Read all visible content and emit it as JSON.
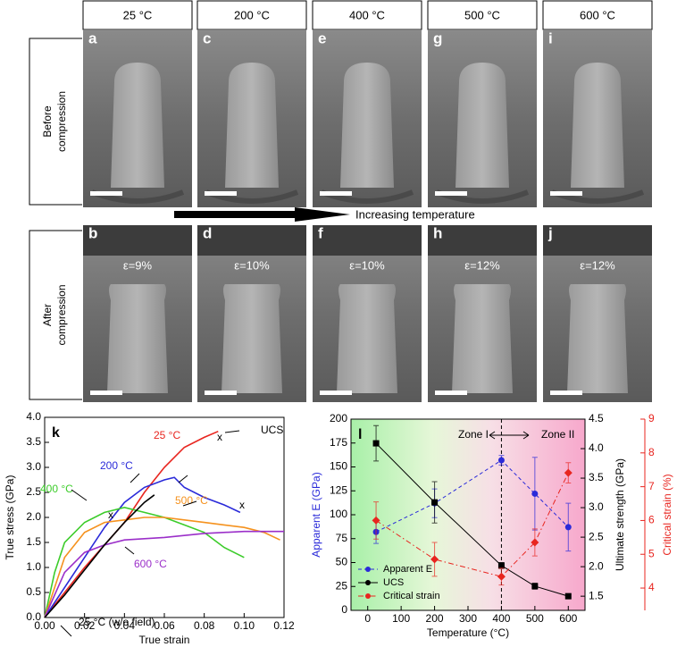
{
  "figure": {
    "temperatures": [
      "25 °C",
      "200 °C",
      "400 °C",
      "500 °C",
      "600 °C"
    ],
    "before_letters": [
      "a",
      "c",
      "e",
      "g",
      "i"
    ],
    "after_letters": [
      "b",
      "d",
      "f",
      "h",
      "j"
    ],
    "strains": [
      "ε=9%",
      "ε=10%",
      "ε=10%",
      "ε=12%",
      "ε=12%"
    ],
    "row_labels": [
      [
        "Before",
        "compression"
      ],
      [
        "After",
        "compression"
      ]
    ],
    "arrow_label": "Increasing temperature"
  },
  "chart_data": [
    {
      "type": "line",
      "panel": "k",
      "xlabel": "True strain",
      "ylabel": "True stress (GPa)",
      "xlim": [
        0,
        0.12
      ],
      "ylim": [
        0,
        4
      ],
      "xticks": [
        {
          "value": 0,
          "label": "0.00"
        },
        0.02,
        0.04,
        0.06,
        0.08,
        {
          "value": 0.1,
          "label": "0.10"
        },
        0.12
      ],
      "yticks": [
        {
          "value": 0,
          "label": "0.0"
        },
        0.5,
        {
          "value": 1,
          "label": "1.0"
        },
        1.5,
        {
          "value": 2,
          "label": "2.0"
        },
        2.5,
        {
          "value": 3,
          "label": "3.0"
        },
        3.5,
        {
          "value": 4,
          "label": "4.0"
        }
      ],
      "series": [
        {
          "name": "25 °C",
          "color": "#e8251f",
          "x": [
            0,
            0.01,
            0.02,
            0.03,
            0.04,
            0.05,
            0.06,
            0.065,
            0.07,
            0.08,
            0.087
          ],
          "values": [
            0,
            0.5,
            1.0,
            1.45,
            1.9,
            2.5,
            3.0,
            3.2,
            3.4,
            3.6,
            3.72
          ]
        },
        {
          "name": "200 °C",
          "color": "#2a2ad9",
          "x": [
            0,
            0.01,
            0.02,
            0.03,
            0.04,
            0.05,
            0.06,
            0.065,
            0.07,
            0.08,
            0.09,
            0.098
          ],
          "values": [
            0,
            0.6,
            1.2,
            1.8,
            2.3,
            2.6,
            2.75,
            2.8,
            2.6,
            2.4,
            2.25,
            2.1
          ]
        },
        {
          "name": "400 °C",
          "color": "#3ccc2a",
          "x": [
            0,
            0.005,
            0.01,
            0.02,
            0.03,
            0.04,
            0.05,
            0.06,
            0.07,
            0.08,
            0.09,
            0.1
          ],
          "values": [
            0,
            0.9,
            1.5,
            1.9,
            2.1,
            2.2,
            2.1,
            2.0,
            1.85,
            1.7,
            1.4,
            1.2
          ]
        },
        {
          "name": "500 °C",
          "color": "#f5921e",
          "x": [
            0,
            0.01,
            0.02,
            0.03,
            0.04,
            0.05,
            0.06,
            0.07,
            0.08,
            0.09,
            0.1,
            0.11,
            0.118
          ],
          "values": [
            0,
            1.2,
            1.7,
            1.9,
            1.95,
            2.0,
            2.0,
            1.95,
            1.9,
            1.85,
            1.8,
            1.7,
            1.55
          ]
        },
        {
          "name": "600 °C",
          "color": "#9b2fc9",
          "x": [
            0,
            0.01,
            0.02,
            0.03,
            0.04,
            0.06,
            0.08,
            0.1,
            0.12
          ],
          "values": [
            0,
            0.9,
            1.3,
            1.45,
            1.55,
            1.6,
            1.68,
            1.72,
            1.72
          ]
        },
        {
          "name": "25 °C (w/o field)",
          "color": "#000000",
          "x": [
            0,
            0.01,
            0.02,
            0.03,
            0.04,
            0.05,
            0.055
          ],
          "values": [
            0,
            0.45,
            0.95,
            1.45,
            1.9,
            2.3,
            2.45
          ]
        }
      ],
      "annotations": [
        "UCS",
        "x",
        "x",
        "x"
      ]
    },
    {
      "type": "line",
      "panel": "l",
      "xlabel": "Temperature (°C)",
      "ylabel": "Apparent E (GPa)",
      "y2label": "Ultimate strength (GPa)",
      "y3label": "Critical strain (%)",
      "xlim": [
        -50,
        650
      ],
      "xticks": [
        0,
        100,
        200,
        300,
        400,
        500,
        600
      ],
      "ylim": [
        0,
        200
      ],
      "yticks": [
        0,
        25,
        50,
        75,
        100,
        125,
        150,
        175,
        200
      ],
      "y2lim": [
        1.26,
        4.5
      ],
      "y2ticks": [
        1.5,
        {
          "value": 2,
          "label": "2.0"
        },
        2.5,
        {
          "value": 3,
          "label": "3.0"
        },
        3.5,
        {
          "value": 4,
          "label": "4.0"
        },
        4.5
      ],
      "y3lim": [
        3.34,
        9
      ],
      "y3ticks": [
        4,
        5,
        6,
        7,
        8,
        9
      ],
      "x": [
        25,
        200,
        400,
        500,
        600
      ],
      "series": [
        {
          "name": "Apparent E",
          "color": "#2a2ad9",
          "axis": "y",
          "marker": "circle",
          "dash": "dashed",
          "values": [
            82,
            112,
            157,
            122,
            87
          ],
          "errors": [
            12,
            15,
            5,
            38,
            25
          ]
        },
        {
          "name": "UCS",
          "color": "#000000",
          "axis": "y2",
          "marker": "square",
          "dash": "solid",
          "values": [
            4.09,
            3.09,
            2.02,
            1.67,
            1.5
          ],
          "errors": [
            0.3,
            0.35,
            0.05,
            0.05,
            0.04
          ]
        },
        {
          "name": "Critical strain",
          "color": "#e8251f",
          "axis": "y3",
          "marker": "diamond",
          "dash": "dashdot",
          "values": [
            6.0,
            4.85,
            4.34,
            5.35,
            7.41
          ],
          "errors": [
            0.55,
            0.5,
            0.25,
            0.4,
            0.3
          ]
        }
      ],
      "vline": 400,
      "annotations": [
        "Zone I",
        "Zone II"
      ],
      "legend": "lower left",
      "background": true
    }
  ]
}
